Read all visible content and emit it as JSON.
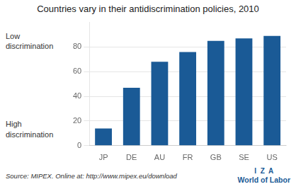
{
  "chart_data": {
    "type": "bar",
    "title": "Countries vary in their antidiscrimination policies, 2010",
    "categories": [
      "JP",
      "DE",
      "AU",
      "FR",
      "GB",
      "SE",
      "US"
    ],
    "values": [
      14,
      47,
      68,
      76,
      85,
      87,
      89
    ],
    "color": "#1a5a96",
    "ylim": [
      0,
      100
    ],
    "yticks": [
      0,
      20,
      40,
      60,
      80
    ],
    "grid": true,
    "annotations": [
      "Low\ndiscrimination",
      "High\ndiscrimination",
      "Source: MIPEX. Online at: http://www.mipex.eu/download",
      "I  Z  A",
      "World of Labor"
    ]
  }
}
